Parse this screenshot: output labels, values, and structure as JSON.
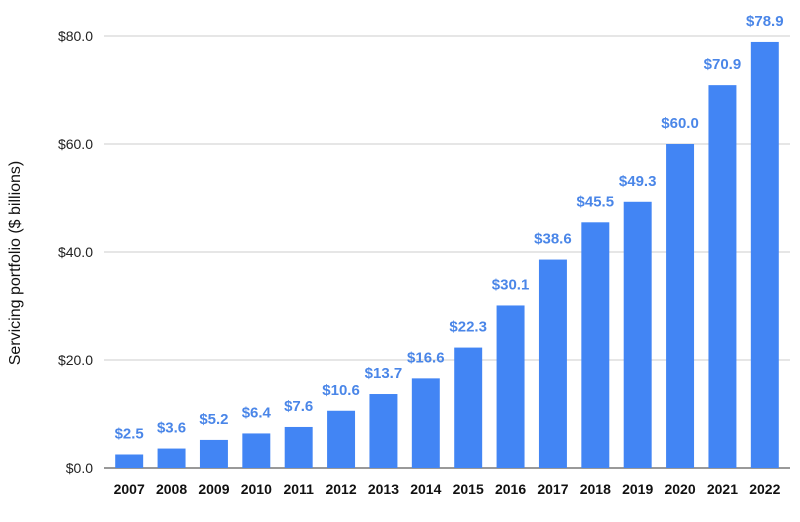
{
  "chart_data": {
    "type": "bar",
    "title": "",
    "xlabel": "",
    "ylabel": "Servicing portfolio ($ billions)",
    "ylim": [
      0,
      80
    ],
    "yticks": [
      0,
      20,
      40,
      60,
      80
    ],
    "ytick_labels": [
      "$0.0",
      "$20.0",
      "$40.0",
      "$60.0",
      "$80.0"
    ],
    "grid": true,
    "legend": "none",
    "bar_color": "#4285F4",
    "label_color": "#4A86E8",
    "categories": [
      "2007",
      "2008",
      "2009",
      "2010",
      "2011",
      "2012",
      "2013",
      "2014",
      "2015",
      "2016",
      "2017",
      "2018",
      "2019",
      "2020",
      "2021",
      "2022"
    ],
    "values": [
      2.5,
      3.6,
      5.2,
      6.4,
      7.6,
      10.6,
      13.7,
      16.6,
      22.3,
      30.1,
      38.6,
      45.5,
      49.3,
      60.0,
      70.9,
      78.9
    ],
    "data_labels": [
      "$2.5",
      "$3.6",
      "$5.2",
      "$6.4",
      "$7.6",
      "$10.6",
      "$13.7",
      "$16.6",
      "$22.3",
      "$30.1",
      "$38.6",
      "$45.5",
      "$49.3",
      "$60.0",
      "$70.9",
      "$78.9"
    ]
  }
}
